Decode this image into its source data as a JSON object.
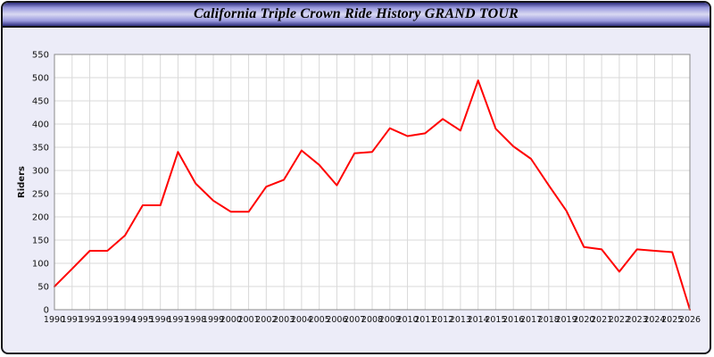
{
  "window": {
    "title": "California Triple Crown Ride History GRAND TOUR"
  },
  "chart_data": {
    "type": "line",
    "title": "California Triple Crown Ride History GRAND TOUR",
    "xlabel": "",
    "ylabel": "Riders",
    "ylim": [
      0,
      550
    ],
    "ytick_step": 50,
    "grid": true,
    "legend_position": "none",
    "line_color": "#ff0000",
    "grid_color": "#d9d9d9",
    "plot_bg": "#ffffff",
    "x": [
      1990,
      1991,
      1992,
      1993,
      1994,
      1995,
      1996,
      1997,
      1998,
      1999,
      2000,
      2001,
      2002,
      2003,
      2004,
      2005,
      2006,
      2007,
      2008,
      2009,
      2010,
      2011,
      2012,
      2013,
      2014,
      2015,
      2016,
      2017,
      2018,
      2019,
      2020,
      2021,
      2022,
      2023,
      2024,
      2025,
      2026
    ],
    "series": [
      {
        "name": "Riders",
        "values": [
          50,
          88,
          127,
          127,
          160,
          225,
          225,
          340,
          272,
          235,
          211,
          211,
          265,
          280,
          343,
          312,
          268,
          337,
          340,
          391,
          374,
          380,
          411,
          386,
          494,
          390,
          352,
          325,
          268,
          213,
          135,
          130,
          82,
          130,
          127,
          124,
          0
        ]
      }
    ]
  }
}
